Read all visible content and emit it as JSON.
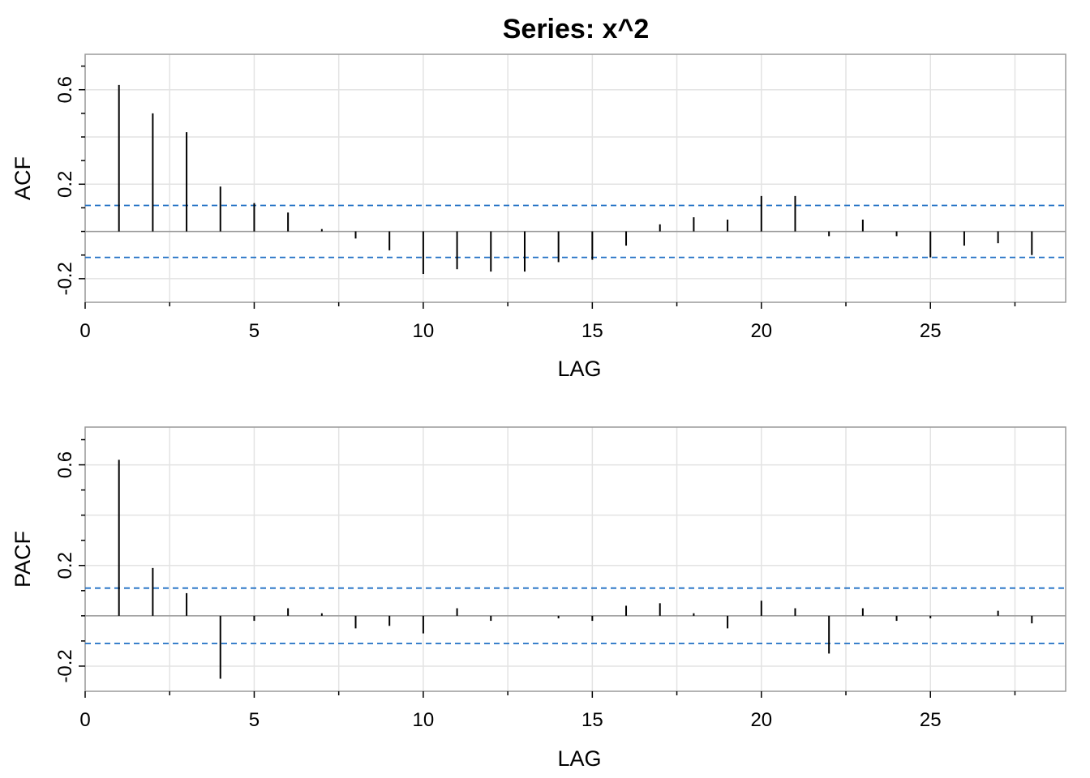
{
  "title": "Series:  x^2",
  "colors": {
    "bars": "#000000",
    "bounds": "#1f6fc4",
    "grid": "#e3e3e3",
    "frame": "#9a9a9a"
  },
  "chart_data": [
    {
      "type": "bar",
      "name": "acf",
      "ylabel": "ACF",
      "xlabel": "LAG",
      "xlim": [
        0,
        29
      ],
      "ylim": [
        -0.3,
        0.75
      ],
      "xticks": [
        0,
        5,
        10,
        15,
        20,
        25
      ],
      "yticks": [
        -0.2,
        0.2,
        0.6
      ],
      "x": [
        1,
        2,
        3,
        4,
        5,
        6,
        7,
        8,
        9,
        10,
        11,
        12,
        13,
        14,
        15,
        16,
        17,
        18,
        19,
        20,
        21,
        22,
        23,
        24,
        25,
        26,
        27,
        28
      ],
      "values": [
        0.62,
        0.5,
        0.42,
        0.19,
        0.12,
        0.08,
        0.01,
        -0.03,
        -0.08,
        -0.18,
        -0.16,
        -0.17,
        -0.17,
        -0.13,
        -0.12,
        -0.06,
        0.03,
        0.06,
        0.05,
        0.15,
        0.15,
        -0.02,
        0.05,
        -0.02,
        -0.11,
        -0.06,
        -0.05,
        -0.1
      ],
      "conf_bounds": [
        0.11,
        -0.11
      ],
      "grid": true
    },
    {
      "type": "bar",
      "name": "pacf",
      "ylabel": "PACF",
      "xlabel": "LAG",
      "xlim": [
        0,
        29
      ],
      "ylim": [
        -0.3,
        0.75
      ],
      "xticks": [
        0,
        5,
        10,
        15,
        20,
        25
      ],
      "yticks": [
        -0.2,
        0.2,
        0.6
      ],
      "x": [
        1,
        2,
        3,
        4,
        5,
        6,
        7,
        8,
        9,
        10,
        11,
        12,
        13,
        14,
        15,
        16,
        17,
        18,
        19,
        20,
        21,
        22,
        23,
        24,
        25,
        26,
        27,
        28
      ],
      "values": [
        0.62,
        0.19,
        0.09,
        -0.25,
        -0.02,
        0.03,
        0.01,
        -0.05,
        -0.04,
        -0.07,
        0.03,
        -0.02,
        0.0,
        -0.01,
        -0.02,
        0.04,
        0.05,
        0.01,
        -0.05,
        0.06,
        0.03,
        -0.15,
        0.03,
        -0.02,
        -0.01,
        0.0,
        0.02,
        -0.03
      ],
      "conf_bounds": [
        0.11,
        -0.11
      ],
      "grid": true
    }
  ]
}
